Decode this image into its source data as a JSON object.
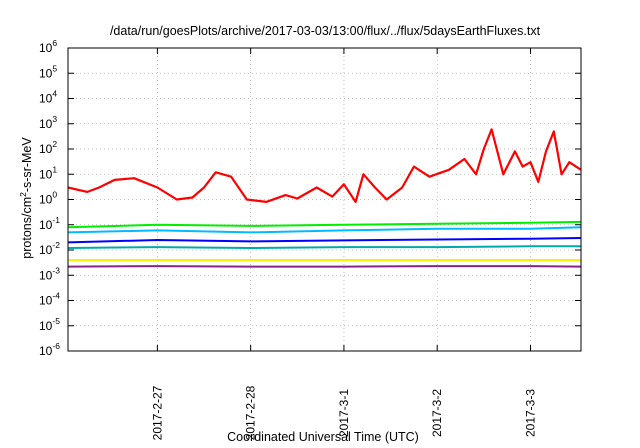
{
  "chart_data": {
    "type": "line",
    "title": "/data/run/goesPlots/archive/2017-03-03/13:00/flux/../flux/5daysEarthFluxes.txt",
    "xlabel": "Coordinated Universal Time (UTC)",
    "ylabel": "protons/cm2-s-sr-MeV",
    "ylabel_parts": {
      "pre": "protons/cm",
      "sup": "2",
      "post": "-s-sr-MeV"
    },
    "y_scale": "log",
    "ylim": [
      1e-06,
      1000000.0
    ],
    "y_ticks": [
      {
        "value": 1e-06,
        "base": "10",
        "exp": "-6"
      },
      {
        "value": 1e-05,
        "base": "10",
        "exp": "-5"
      },
      {
        "value": 0.0001,
        "base": "10",
        "exp": "-4"
      },
      {
        "value": 0.001,
        "base": "10",
        "exp": "-3"
      },
      {
        "value": 0.01,
        "base": "10",
        "exp": "-2"
      },
      {
        "value": 0.1,
        "base": "10",
        "exp": "-1"
      },
      {
        "value": 1,
        "base": "10",
        "exp": "0"
      },
      {
        "value": 10,
        "base": "10",
        "exp": "1"
      },
      {
        "value": 100,
        "base": "10",
        "exp": "2"
      },
      {
        "value": 1000,
        "base": "10",
        "exp": "3"
      },
      {
        "value": 10000,
        "base": "10",
        "exp": "4"
      },
      {
        "value": 100000,
        "base": "10",
        "exp": "5"
      },
      {
        "value": 1000000,
        "base": "10",
        "exp": "6"
      }
    ],
    "xlim": [
      "2017-02-26 01:00",
      "2017-03-03 13:00"
    ],
    "x_ticks": [
      {
        "label": "2017-2-27",
        "date": "2017-02-27 00:00"
      },
      {
        "label": "2017-2-28",
        "date": "2017-02-28 00:00"
      },
      {
        "label": "2017-3-1",
        "date": "2017-03-01 00:00"
      },
      {
        "label": "2017-3-2",
        "date": "2017-03-02 00:00"
      },
      {
        "label": "2017-3-3",
        "date": "2017-03-03 00:00"
      }
    ],
    "grid": true,
    "series": [
      {
        "color": "#ff0000",
        "x": [
          "2017-02-26 01:00",
          "2017-02-26 06:00",
          "2017-02-26 09:00",
          "2017-02-26 13:00",
          "2017-02-26 18:00",
          "2017-02-27 00:00",
          "2017-02-27 05:00",
          "2017-02-27 09:00",
          "2017-02-27 12:00",
          "2017-02-27 15:00",
          "2017-02-27 19:00",
          "2017-02-27 23:00",
          "2017-02-28 04:00",
          "2017-02-28 09:00",
          "2017-02-28 12:00",
          "2017-02-28 17:00",
          "2017-02-28 21:00",
          "2017-03-01 00:00",
          "2017-03-01 03:00",
          "2017-03-01 05:00",
          "2017-03-01 08:00",
          "2017-03-01 11:00",
          "2017-03-01 15:00",
          "2017-03-01 18:00",
          "2017-03-01 22:00",
          "2017-03-02 03:00",
          "2017-03-02 07:00",
          "2017-03-02 10:00",
          "2017-03-02 12:00",
          "2017-03-02 14:00",
          "2017-03-02 17:00",
          "2017-03-02 20:00",
          "2017-03-02 22:00",
          "2017-03-03 00:00",
          "2017-03-03 02:00",
          "2017-03-03 04:00",
          "2017-03-03 06:00",
          "2017-03-03 08:00",
          "2017-03-03 10:00",
          "2017-03-03 13:00"
        ],
        "values": [
          3,
          2,
          3,
          6,
          7,
          3,
          1,
          1.2,
          3,
          12,
          8,
          1,
          0.8,
          1.5,
          1.1,
          3,
          1.3,
          4,
          0.8,
          10,
          3,
          1,
          3,
          20,
          8,
          15,
          40,
          10,
          100,
          600,
          10,
          80,
          20,
          30,
          5,
          80,
          500,
          10,
          30,
          15
        ]
      },
      {
        "color": "#00ee00",
        "x": [
          "2017-02-26 01:00",
          "2017-02-27 00:00",
          "2017-02-28 00:00",
          "2017-03-01 00:00",
          "2017-03-02 00:00",
          "2017-03-03 00:00",
          "2017-03-03 13:00"
        ],
        "values": [
          0.08,
          0.1,
          0.09,
          0.1,
          0.11,
          0.12,
          0.13
        ]
      },
      {
        "color": "#00bbff",
        "x": [
          "2017-02-26 01:00",
          "2017-02-27 00:00",
          "2017-02-28 00:00",
          "2017-03-01 00:00",
          "2017-03-02 00:00",
          "2017-03-03 00:00",
          "2017-03-03 13:00"
        ],
        "values": [
          0.05,
          0.06,
          0.05,
          0.06,
          0.07,
          0.07,
          0.08
        ]
      },
      {
        "color": "#0000ff",
        "x": [
          "2017-02-26 01:00",
          "2017-02-27 00:00",
          "2017-02-28 00:00",
          "2017-03-01 00:00",
          "2017-03-02 00:00",
          "2017-03-03 00:00",
          "2017-03-03 13:00"
        ],
        "values": [
          0.02,
          0.025,
          0.022,
          0.024,
          0.026,
          0.028,
          0.03
        ]
      },
      {
        "color": "#00aaaa",
        "x": [
          "2017-02-26 01:00",
          "2017-02-27 00:00",
          "2017-02-28 00:00",
          "2017-03-01 00:00",
          "2017-03-02 00:00",
          "2017-03-03 00:00",
          "2017-03-03 13:00"
        ],
        "values": [
          0.012,
          0.013,
          0.012,
          0.013,
          0.013,
          0.014,
          0.014
        ]
      },
      {
        "color": "#ffee00",
        "x": [
          "2017-02-26 01:00",
          "2017-02-27 00:00",
          "2017-02-28 00:00",
          "2017-03-01 00:00",
          "2017-03-02 00:00",
          "2017-03-03 00:00",
          "2017-03-03 13:00"
        ],
        "values": [
          0.004,
          0.004,
          0.004,
          0.004,
          0.004,
          0.004,
          0.004
        ]
      },
      {
        "color": "#882288",
        "x": [
          "2017-02-26 01:00",
          "2017-02-27 00:00",
          "2017-02-28 00:00",
          "2017-03-01 00:00",
          "2017-03-02 00:00",
          "2017-03-03 00:00",
          "2017-03-03 13:00"
        ],
        "values": [
          0.0022,
          0.0023,
          0.0022,
          0.0022,
          0.0023,
          0.0023,
          0.0022
        ]
      }
    ]
  }
}
